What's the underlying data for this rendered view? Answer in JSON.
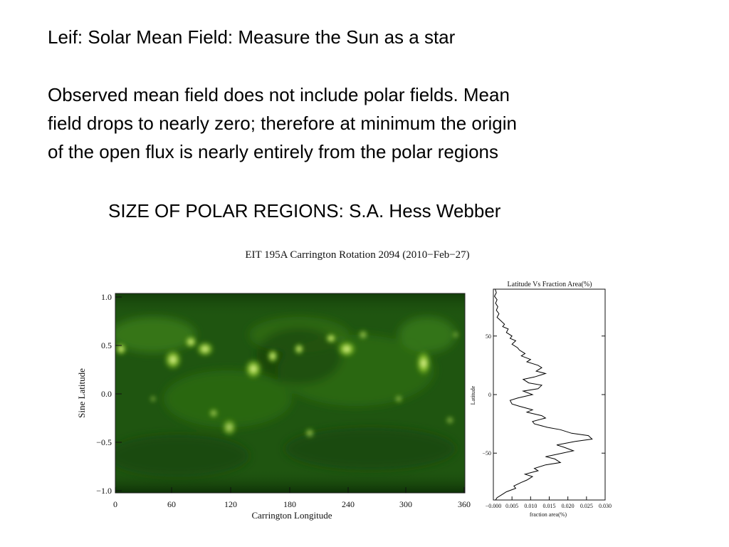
{
  "slide": {
    "title": "Leif: Solar Mean Field:  Measure the Sun as a star",
    "paragraph_lines": [
      "Observed mean field does not include polar fields. Mean",
      "field drops to nearly zero; therefore at minimum the origin",
      "of the open flux is nearly entirely from the polar regions"
    ],
    "subtitle": "SIZE OF POLAR REGIONS: S.A. Hess Webber"
  },
  "figure": {
    "title": "EIT 195A Carrington Rotation 2094 (2010−Feb−27)",
    "map": {
      "xlabel": "Carrington Longitude",
      "ylabel": "Sine Latitude",
      "x_ticks": [
        "0",
        "60",
        "120",
        "180",
        "240",
        "300",
        "360"
      ],
      "y_ticks": [
        "1.0",
        "0.5",
        "0.0",
        "−0.5",
        "−1.0"
      ],
      "colors": {
        "background": "#1f5510",
        "bright": "#f4ffb0",
        "mid": "#7dc01e",
        "dark": "#0b2b05"
      }
    }
  },
  "chart_data": {
    "type": "line",
    "title": "Latitude Vs Fraction Area(%)",
    "xlabel": "fraction area(%)",
    "ylabel": "Latitude",
    "x_tick_labels": [
      "−0.000",
      "0.005",
      "0.010",
      "0.015",
      "0.020",
      "0.025",
      "0.030"
    ],
    "y_tick_labels": [
      "50",
      "0",
      "−50"
    ],
    "xlim": [
      0,
      0.03
    ],
    "ylim": [
      -90,
      90
    ],
    "series": [
      {
        "x": [
          0.0005,
          0.0008,
          0.0003,
          0.001,
          0.0006,
          0.0012,
          0.0008,
          0.0015,
          0.001,
          0.002,
          0.003,
          0.0025,
          0.004,
          0.0035,
          0.005,
          0.0045,
          0.006,
          0.005,
          0.0065,
          0.007,
          0.0085,
          0.0075,
          0.01,
          0.009,
          0.012,
          0.013,
          0.0115,
          0.014,
          0.011,
          0.008,
          0.0095,
          0.013,
          0.012,
          0.008,
          0.0105,
          0.0065,
          0.0045,
          0.005,
          0.007,
          0.0105,
          0.009,
          0.013,
          0.014,
          0.0105,
          0.011,
          0.0145,
          0.018,
          0.021,
          0.0255,
          0.0265,
          0.022,
          0.017,
          0.019,
          0.0215,
          0.0185,
          0.014,
          0.0165,
          0.018,
          0.014,
          0.011,
          0.012,
          0.0085,
          0.0105,
          0.009,
          0.0075,
          0.0055,
          0.006,
          0.0035,
          0.0025,
          0.001,
          0.0006
        ],
        "y": [
          90,
          87,
          84,
          81,
          78,
          75,
          72,
          69,
          66,
          63,
          60,
          58,
          56,
          53,
          50,
          48,
          46,
          43,
          40,
          38,
          35,
          33,
          30,
          28,
          25,
          23,
          20,
          18,
          15,
          13,
          10,
          8,
          5,
          3,
          0,
          -3,
          -5,
          -8,
          -10,
          -13,
          -15,
          -18,
          -20,
          -23,
          -25,
          -28,
          -30,
          -33,
          -35,
          -38,
          -40,
          -43,
          -45,
          -48,
          -50,
          -53,
          -55,
          -58,
          -60,
          -63,
          -65,
          -68,
          -70,
          -73,
          -75,
          -78,
          -80,
          -83,
          -85,
          -88,
          -90
        ]
      }
    ],
    "grid": false
  }
}
